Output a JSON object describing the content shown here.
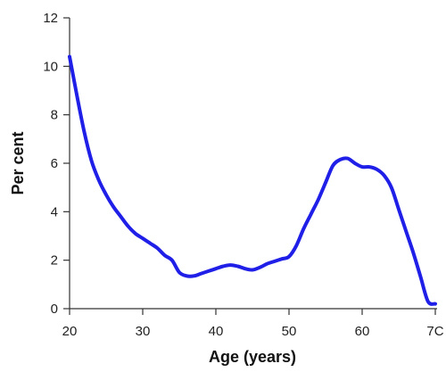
{
  "chart_data": {
    "type": "line",
    "xlabel": "Age (years)",
    "ylabel": "Per cent",
    "xlim": [
      20,
      70
    ],
    "ylim": [
      0,
      12
    ],
    "x_ticks": [
      "20",
      "30",
      "40",
      "50",
      "60",
      "7C"
    ],
    "y_ticks": [
      "0",
      "2",
      "4",
      "6",
      "8",
      "10",
      "12"
    ],
    "grid": false,
    "line_color": "#1f1fe8",
    "series": [
      {
        "x": [
          20,
          21,
          22,
          23,
          24,
          25,
          26,
          27,
          28,
          29,
          30,
          31,
          32,
          33,
          34,
          35,
          36,
          37,
          38,
          39,
          40,
          41,
          42,
          43,
          44,
          45,
          46,
          47,
          48,
          49,
          50,
          51,
          52,
          53,
          54,
          55,
          56,
          57,
          58,
          59,
          60,
          61,
          62,
          63,
          64,
          65,
          66,
          67,
          68,
          69,
          70
        ],
        "y": [
          10.4,
          8.8,
          7.3,
          6.1,
          5.3,
          4.7,
          4.2,
          3.8,
          3.4,
          3.1,
          2.9,
          2.7,
          2.5,
          2.2,
          2.0,
          1.5,
          1.35,
          1.35,
          1.45,
          1.55,
          1.65,
          1.75,
          1.8,
          1.75,
          1.65,
          1.6,
          1.7,
          1.85,
          1.95,
          2.05,
          2.15,
          2.6,
          3.3,
          3.9,
          4.5,
          5.2,
          5.9,
          6.15,
          6.2,
          6.0,
          5.85,
          5.85,
          5.75,
          5.5,
          5.0,
          4.1,
          3.2,
          2.3,
          1.3,
          0.3,
          0.2
        ]
      }
    ]
  }
}
